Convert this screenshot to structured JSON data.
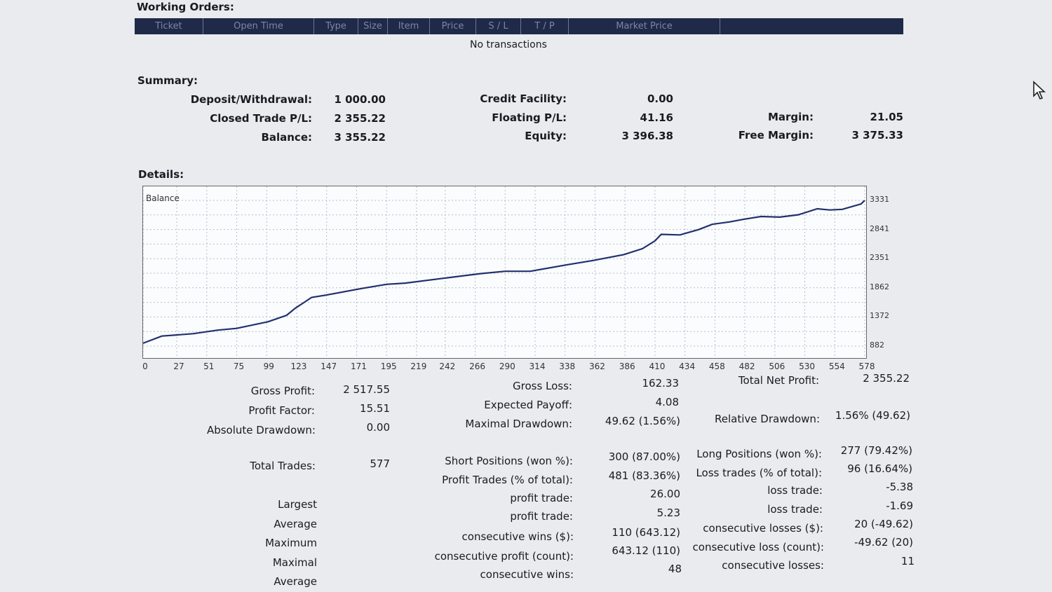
{
  "working_orders": {
    "title": "Working Orders:",
    "columns": [
      "Ticket",
      "Open Time",
      "Type",
      "Size",
      "Item",
      "Price",
      "S / L",
      "T / P",
      "Market Price",
      ""
    ],
    "empty_text": "No transactions"
  },
  "summary": {
    "title": "Summary:",
    "deposit_label": "Deposit/Withdrawal:",
    "deposit_value": "1 000.00",
    "closed_label": "Closed Trade P/L:",
    "closed_value": "2 355.22",
    "balance_label": "Balance:",
    "balance_value": "3 355.22",
    "credit_label": "Credit Facility:",
    "credit_value": "0.00",
    "floating_label": "Floating P/L:",
    "floating_value": "41.16",
    "equity_label": "Equity:",
    "equity_value": "3 396.38",
    "margin_label": "Margin:",
    "margin_value": "21.05",
    "free_margin_label": "Free Margin:",
    "free_margin_value": "3 375.33"
  },
  "details": {
    "title": "Details:"
  },
  "chart_data": {
    "type": "line",
    "title": "Balance",
    "x_ticks": [
      0,
      27,
      51,
      75,
      99,
      123,
      147,
      171,
      195,
      219,
      242,
      266,
      290,
      314,
      338,
      362,
      386,
      410,
      434,
      458,
      482,
      506,
      530,
      554,
      578
    ],
    "y_ticks": [
      3331,
      2841,
      2351,
      1862,
      1372,
      882
    ],
    "xlim": [
      0,
      578
    ],
    "ylim": [
      882,
      3331
    ],
    "grid": true,
    "series": [
      {
        "x": [
          0,
          15,
          40,
          60,
          75,
          100,
          115,
          122,
          130,
          135,
          147,
          175,
          195,
          210,
          240,
          270,
          290,
          310,
          340,
          360,
          385,
          400,
          410,
          415,
          430,
          445,
          456,
          470,
          480,
          495,
          510,
          525,
          540,
          550,
          560,
          575,
          578
        ],
        "y": [
          930,
          1050,
          1090,
          1150,
          1180,
          1290,
          1400,
          1520,
          1630,
          1700,
          1740,
          1850,
          1920,
          1940,
          2020,
          2100,
          2140,
          2140,
          2250,
          2320,
          2420,
          2520,
          2650,
          2760,
          2750,
          2840,
          2930,
          2970,
          3010,
          3060,
          3050,
          3090,
          3190,
          3170,
          3180,
          3270,
          3331
        ]
      }
    ]
  },
  "stats": {
    "gross_profit_label": "Gross Profit:",
    "gross_profit_value": "2 517.55",
    "profit_factor_label": "Profit Factor:",
    "profit_factor_value": "15.51",
    "abs_dd_label": "Absolute Drawdown:",
    "abs_dd_value": "0.00",
    "total_trades_label": "Total Trades:",
    "total_trades_value": "577",
    "gross_loss_label": "Gross Loss:",
    "gross_loss_value": "162.33",
    "exp_payoff_label": "Expected Payoff:",
    "exp_payoff_value": "4.08",
    "max_dd_label": "Maximal Drawdown:",
    "max_dd_value": "49.62 (1.56%)",
    "net_profit_label": "Total Net Profit:",
    "net_profit_value": "2 355.22",
    "rel_dd_label": "Relative Drawdown:",
    "rel_dd_value": "1.56% (49.62)",
    "short_label": "Short Positions (won %):",
    "short_value": "300 (87.00%)",
    "profit_trades_label": "Profit Trades (% of total):",
    "profit_trades_value": "481 (83.36%)",
    "long_label": "Long Positions (won %):",
    "long_value": "277 (79.42%)",
    "loss_trades_label": "Loss trades (% of total):",
    "loss_trades_value": "96 (16.64%)",
    "largest_label": "Largest",
    "average_label": "Average",
    "maximum_label": "Maximum",
    "maximal_label": "Maximal",
    "average2_label": "Average",
    "lg_profit_label": "profit trade:",
    "lg_profit_value": "26.00",
    "avg_profit_label": "profit trade:",
    "avg_profit_value": "5.23",
    "max_cons_wins_label": "consecutive wins ($):",
    "max_cons_wins_value": "110 (643.12)",
    "mxl_cons_profit_label": "consecutive profit (count):",
    "mxl_cons_profit_value": "643.12 (110)",
    "avg_cons_wins_label": "consecutive wins:",
    "avg_cons_wins_value": "48",
    "lg_loss_label": "loss trade:",
    "lg_loss_value": "-5.38",
    "avg_loss_label": "loss trade:",
    "avg_loss_value": "-1.69",
    "max_cons_losses_label": "consecutive losses ($):",
    "max_cons_losses_value": "20 (-49.62)",
    "mxl_cons_loss_label": "consecutive loss (count):",
    "mxl_cons_loss_value": "-49.62 (20)",
    "avg_cons_losses_label": "consecutive losses:",
    "avg_cons_losses_value": "11"
  }
}
